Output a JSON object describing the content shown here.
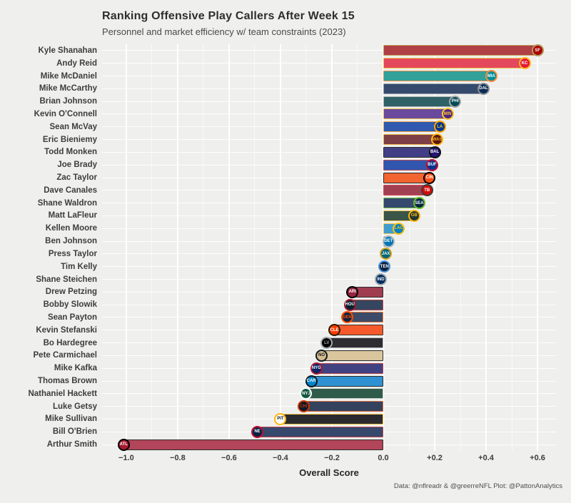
{
  "chart": {
    "title": "Ranking Offensive Play Callers After Week 15",
    "subtitle": "Personnel and market efficiency w/ team constraints (2023)",
    "xlabel": "Overall Score",
    "caption": "Data: @nflreadr & @greerreNFL Plot: @PattonAnalytics"
  },
  "colors": {
    "background": "#EFEFED",
    "grid_major": "#FFFFFF",
    "axis_text": "#3D3D3D",
    "title_text": "#2E2E2E"
  },
  "chart_data": {
    "type": "bar",
    "orientation": "horizontal",
    "title": "Ranking Offensive Play Callers After Week 15",
    "subtitle": "Personnel and market efficiency w/ team constraints (2023)",
    "xlabel": "Overall Score",
    "ylabel": "",
    "xlim": [
      -1.094,
      0.672
    ],
    "x_ticks": [
      -1.0,
      -0.8,
      -0.6,
      -0.4,
      -0.2,
      0.0,
      0.2,
      0.4,
      0.6
    ],
    "x_tick_labels": [
      "−1.0",
      "−0.8",
      "−0.6",
      "−0.4",
      "−0.2",
      "0.0",
      "+0.2",
      "+0.4",
      "+0.6"
    ],
    "x_minor_ticks": [
      -0.9,
      -0.7,
      -0.5,
      -0.3,
      -0.1,
      0.1,
      0.3,
      0.5
    ],
    "grid": "white major and minor verticals plus per-row horizontals on gray panel",
    "legend_position": "none",
    "bars": [
      {
        "coach": "Kyle Shanahan",
        "team": "San Francisco 49ers",
        "abbr": "SF",
        "value": 0.6,
        "fill": "#B04045",
        "border": "#C2A562",
        "logo_bg": "#AA0000",
        "logo_ring": "#B3995D",
        "logo_fg": "#FFFFFF"
      },
      {
        "coach": "Andy Reid",
        "team": "Kansas City Chiefs",
        "abbr": "KC",
        "value": 0.55,
        "fill": "#E4485C",
        "border": "#F2C94C",
        "logo_bg": "#E31837",
        "logo_ring": "#FFB81C",
        "logo_fg": "#FFFFFF"
      },
      {
        "coach": "Mike McDaniel",
        "team": "Miami Dolphins",
        "abbr": "MIA",
        "value": 0.42,
        "fill": "#31A19A",
        "border": "#F2914E",
        "logo_bg": "#008E97",
        "logo_ring": "#FC8B3C",
        "logo_fg": "#FFFFFF"
      },
      {
        "coach": "Mike McCarthy",
        "team": "Dallas Cowboys",
        "abbr": "DAL",
        "value": 0.39,
        "fill": "#354A6D",
        "border": "#97A1A9",
        "logo_bg": "#0A2A55",
        "logo_ring": "#8C9196",
        "logo_fg": "#FFFFFF"
      },
      {
        "coach": "Brian Johnson",
        "team": "Philadelphia Eagles",
        "abbr": "PHI",
        "value": 0.28,
        "fill": "#2F6166",
        "border": "#ADB3B6",
        "logo_bg": "#004C54",
        "logo_ring": "#A7A9AC",
        "logo_fg": "#FFFFFF"
      },
      {
        "coach": "Kevin O'Connell",
        "team": "Minnesota Vikings",
        "abbr": "MIN",
        "value": 0.25,
        "fill": "#6A4A9D",
        "border": "#ECC04A",
        "logo_bg": "#4F2683",
        "logo_ring": "#FFC62F",
        "logo_fg": "#FFC62F"
      },
      {
        "coach": "Sean McVay",
        "team": "Los Angeles Rams",
        "abbr": "LA",
        "value": 0.22,
        "fill": "#2F5AAF",
        "border": "#F0AA49",
        "logo_bg": "#003594",
        "logo_ring": "#FFA300",
        "logo_fg": "#FFD100"
      },
      {
        "coach": "Eric Bieniemy",
        "team": "Washington Commanders",
        "abbr": "WAS",
        "value": 0.21,
        "fill": "#7E4046",
        "border": "#EAB148",
        "logo_bg": "#5A1414",
        "logo_ring": "#FFB612",
        "logo_fg": "#FFB612"
      },
      {
        "coach": "Todd Monken",
        "team": "Baltimore Ravens",
        "abbr": "BAL",
        "value": 0.2,
        "fill": "#433F86",
        "border": "#2C2C2C",
        "logo_bg": "#241773",
        "logo_ring": "#101010",
        "logo_fg": "#FFFFFF"
      },
      {
        "coach": "Joe Brady",
        "team": "Buffalo Bills",
        "abbr": "BUF",
        "value": 0.19,
        "fill": "#3056AE",
        "border": "#C04A58",
        "logo_bg": "#00338D",
        "logo_ring": "#C60C30",
        "logo_fg": "#FFFFFF"
      },
      {
        "coach": "Zac Taylor",
        "team": "Cincinnati Bengals",
        "abbr": "CIN",
        "value": 0.18,
        "fill": "#F26430",
        "border": "#262626",
        "logo_bg": "#FB4F14",
        "logo_ring": "#000000",
        "logo_fg": "#FFFFFF"
      },
      {
        "coach": "Dave Canales",
        "team": "Tampa Bay Buccaneers",
        "abbr": "TB",
        "value": 0.17,
        "fill": "#A24052",
        "border": "#D24A52",
        "logo_bg": "#D50A0A",
        "logo_ring": "#3E3A35",
        "logo_fg": "#FFFFFF"
      },
      {
        "coach": "Shane Waldron",
        "team": "Seattle Seahawks",
        "abbr": "SEA",
        "value": 0.14,
        "fill": "#35486E",
        "border": "#79C04A",
        "logo_bg": "#002244",
        "logo_ring": "#69BE28",
        "logo_fg": "#FFFFFF"
      },
      {
        "coach": "Matt LaFleur",
        "team": "Green Bay Packers",
        "abbr": "GB",
        "value": 0.12,
        "fill": "#3B5548",
        "border": "#EAC446",
        "logo_bg": "#203731",
        "logo_ring": "#FFB612",
        "logo_fg": "#FFB612"
      },
      {
        "coach": "Kellen Moore",
        "team": "Los Angeles Chargers",
        "abbr": "LAC",
        "value": 0.06,
        "fill": "#3F9DD2",
        "border": "#F1C64A",
        "logo_bg": "#0080C6",
        "logo_ring": "#FFC20E",
        "logo_fg": "#FFC20E"
      },
      {
        "coach": "Ben Johnson",
        "team": "Detroit Lions",
        "abbr": "DET",
        "value": 0.02,
        "fill": "#3F8DC8",
        "border": "#B7BFC4",
        "logo_bg": "#0076B6",
        "logo_ring": "#B0B7BC",
        "logo_fg": "#FFFFFF"
      },
      {
        "coach": "Press Taylor",
        "team": "Jacksonville Jaguars",
        "abbr": "JAX",
        "value": 0.01,
        "fill": "#2E7B86",
        "border": "#CBA55F",
        "logo_bg": "#006778",
        "logo_ring": "#D7A22A",
        "logo_fg": "#FFFFFF"
      },
      {
        "coach": "Tim Kelly",
        "team": "Tennessee Titans",
        "abbr": "TEN",
        "value": 0.005,
        "fill": "#45628F",
        "border": "#6FA6DE",
        "logo_bg": "#0C2340",
        "logo_ring": "#4B92DB",
        "logo_fg": "#FFFFFF"
      },
      {
        "coach": "Shane Steichen",
        "team": "Indianapolis Colts",
        "abbr": "IND",
        "value": -0.01,
        "fill": "#3F71AF",
        "border": "#9DA5AD",
        "logo_bg": "#002C5F",
        "logo_ring": "#A2AAAD",
        "logo_fg": "#FFFFFF"
      },
      {
        "coach": "Drew Petzing",
        "team": "Arizona Cardinals",
        "abbr": "ARI",
        "value": -0.12,
        "fill": "#A03C50",
        "border": "#2C2C2C",
        "logo_bg": "#97233F",
        "logo_ring": "#000000",
        "logo_fg": "#FFFFFF"
      },
      {
        "coach": "Bobby Slowik",
        "team": "Houston Texans",
        "abbr": "HOU",
        "value": -0.13,
        "fill": "#354660",
        "border": "#B4434B",
        "logo_bg": "#03202F",
        "logo_ring": "#A71930",
        "logo_fg": "#FFFFFF"
      },
      {
        "coach": "Sean Payton",
        "team": "Denver Broncos",
        "abbr": "DEN",
        "value": -0.14,
        "fill": "#3B4B68",
        "border": "#EE7A3B",
        "logo_bg": "#0A2343",
        "logo_ring": "#FB4D00",
        "logo_fg": "#FB4D00"
      },
      {
        "coach": "Kevin Stefanski",
        "team": "Cleveland Browns",
        "abbr": "CLE",
        "value": -0.19,
        "fill": "#F45A2C",
        "border": "#443122",
        "logo_bg": "#FF3C00",
        "logo_ring": "#311D00",
        "logo_fg": "#FFFFFF"
      },
      {
        "coach": "Bo Hardegree",
        "team": "Las Vegas Raiders",
        "abbr": "LV",
        "value": -0.22,
        "fill": "#2E2E32",
        "border": "#B7BCC1",
        "logo_bg": "#000000",
        "logo_ring": "#A5ACAF",
        "logo_fg": "#A5ACAF"
      },
      {
        "coach": "Pete Carmichael",
        "team": "New Orleans Saints",
        "abbr": "NO",
        "value": -0.24,
        "fill": "#D9C69C",
        "border": "#2A2A2A",
        "logo_bg": "#D3BC8D",
        "logo_ring": "#101820",
        "logo_fg": "#101820"
      },
      {
        "coach": "Mike Kafka",
        "team": "New York Giants",
        "abbr": "NYG",
        "value": -0.26,
        "fill": "#404282",
        "border": "#B44250",
        "logo_bg": "#0B2265",
        "logo_ring": "#A71930",
        "logo_fg": "#FFFFFF"
      },
      {
        "coach": "Thomas Brown",
        "team": "Carolina Panthers",
        "abbr": "CAR",
        "value": -0.28,
        "fill": "#2F91D1",
        "border": "#292A2D",
        "logo_bg": "#0085CA",
        "logo_ring": "#101820",
        "logo_fg": "#FFFFFF"
      },
      {
        "coach": "Nathaniel Hackett",
        "team": "New York Jets",
        "abbr": "NYJ",
        "value": -0.3,
        "fill": "#2F5C4A",
        "border": "#CBD1CE",
        "logo_bg": "#125740",
        "logo_ring": "#FFFFFF",
        "logo_fg": "#FFFFFF"
      },
      {
        "coach": "Luke Getsy",
        "team": "Chicago Bears",
        "abbr": "CHI",
        "value": -0.31,
        "fill": "#34425E",
        "border": "#D46B3B",
        "logo_bg": "#0B162A",
        "logo_ring": "#C83803",
        "logo_fg": "#C83803"
      },
      {
        "coach": "Mike Sullivan",
        "team": "Pittsburgh Steelers",
        "abbr": "PIT",
        "value": -0.4,
        "fill": "#2B2B2F",
        "border": "#EFC446",
        "logo_bg": "#FFFFFF",
        "logo_ring": "#FFB612",
        "logo_fg": "#101820"
      },
      {
        "coach": "Bill O'Brien",
        "team": "New England Patriots",
        "abbr": "NE",
        "value": -0.49,
        "fill": "#36486C",
        "border": "#BD4652",
        "logo_bg": "#002244",
        "logo_ring": "#C60C30",
        "logo_fg": "#FFFFFF"
      },
      {
        "coach": "Arthur Smith",
        "team": "Atlanta Falcons",
        "abbr": "ATL",
        "value": -1.01,
        "fill": "#B2455A",
        "border": "#2C2C2C",
        "logo_bg": "#A71930",
        "logo_ring": "#000000",
        "logo_fg": "#FFFFFF"
      }
    ]
  }
}
